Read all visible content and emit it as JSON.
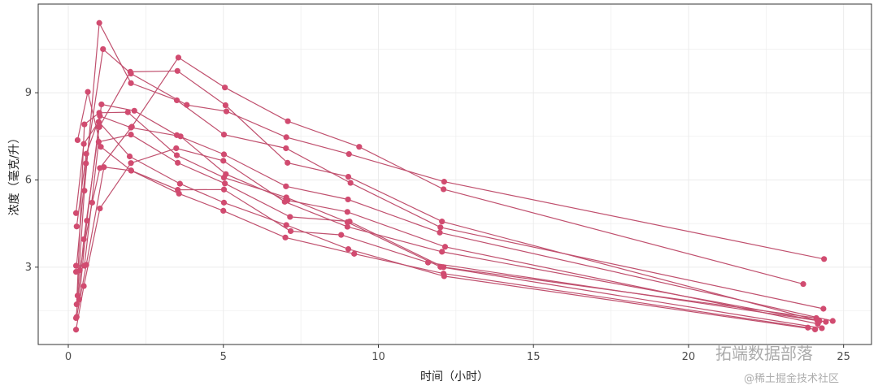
{
  "chart_data": {
    "type": "line",
    "title": "",
    "xlabel": "时间（小时）",
    "ylabel": "浓度（毫克/升）",
    "xlim": [
      -0.97,
      25.9
    ],
    "ylim": [
      0.34,
      12.05
    ],
    "xticks": [
      0,
      5,
      10,
      15,
      20,
      25
    ],
    "yticks": [
      3,
      6,
      9
    ],
    "grid": true,
    "markers": true,
    "color": "#d14b70",
    "line_color": "#c0506e",
    "series": [
      {
        "x": [
          0.25,
          0.57,
          1.12,
          2.02,
          3.82,
          5.1,
          7.03,
          9.05,
          12.12,
          24.37
        ],
        "y": [
          2.84,
          6.57,
          10.5,
          9.66,
          8.58,
          8.36,
          7.47,
          6.89,
          5.94,
          3.28
        ]
      },
      {
        "x": [
          0.27,
          0.52,
          1.0,
          1.92,
          3.5,
          5.02,
          7.03,
          9.0,
          12.0,
          24.3
        ],
        "y": [
          1.72,
          7.91,
          8.31,
          8.33,
          6.85,
          6.08,
          5.4,
          4.55,
          3.01,
          0.9
        ]
      },
      {
        "x": [
          0.27,
          0.58,
          1.02,
          2.02,
          3.62,
          5.08,
          7.07,
          9.0,
          12.15,
          24.17
        ],
        "y": [
          4.4,
          6.9,
          8.2,
          7.8,
          7.5,
          6.2,
          5.3,
          4.9,
          3.7,
          1.05
        ]
      },
      {
        "x": [
          0.35,
          0.6,
          1.07,
          2.13,
          3.5,
          5.02,
          7.02,
          9.02,
          11.98,
          24.65
        ],
        "y": [
          1.89,
          4.6,
          8.6,
          8.38,
          7.54,
          6.88,
          5.78,
          5.33,
          4.19,
          1.15
        ]
      },
      {
        "x": [
          0.3,
          0.52,
          1.0,
          2.02,
          3.5,
          5.02,
          7.02,
          9.1,
          12.0,
          24.35
        ],
        "y": [
          2.02,
          5.63,
          11.4,
          9.33,
          8.74,
          7.56,
          7.09,
          5.9,
          4.37,
          1.57
        ]
      },
      {
        "x": [
          0.27,
          0.58,
          1.15,
          2.03,
          3.57,
          5.0,
          7.0,
          9.22,
          12.1,
          23.85
        ],
        "y": [
          1.29,
          3.08,
          6.44,
          6.32,
          5.53,
          4.94,
          4.02,
          3.46,
          2.78,
          0.92
        ]
      },
      {
        "x": [
          0.25,
          0.5,
          1.02,
          2.02,
          3.48,
          5.0,
          6.98,
          9.0,
          12.05,
          24.22
        ],
        "y": [
          0.85,
          2.35,
          5.02,
          6.58,
          7.09,
          6.66,
          5.25,
          4.39,
          3.53,
          1.15
        ]
      },
      {
        "x": [
          0.25,
          0.52,
          0.98,
          2.02,
          3.53,
          5.05,
          7.15,
          9.07,
          12.1,
          24.12
        ],
        "y": [
          3.05,
          3.05,
          7.31,
          7.56,
          6.59,
          5.88,
          4.73,
          4.57,
          3.0,
          1.25
        ]
      },
      {
        "x": [
          0.3,
          0.63,
          1.05,
          2.02,
          3.53,
          5.02,
          7.17,
          8.8,
          11.6,
          24.43
        ],
        "y": [
          7.37,
          9.03,
          7.14,
          6.33,
          5.66,
          5.67,
          4.24,
          4.11,
          3.16,
          1.12
        ]
      },
      {
        "x": [
          0.37,
          0.77,
          1.02,
          2.05,
          3.55,
          5.05,
          7.08,
          9.38,
          12.1,
          23.7
        ],
        "y": [
          2.89,
          5.22,
          6.41,
          7.83,
          10.21,
          9.18,
          8.02,
          7.14,
          5.68,
          2.42
        ]
      },
      {
        "x": [
          0.25,
          0.5,
          0.98,
          1.98,
          3.6,
          5.02,
          7.03,
          9.03,
          12.12,
          24.08
        ],
        "y": [
          4.86,
          7.24,
          8.0,
          6.81,
          5.87,
          5.22,
          4.45,
          3.62,
          2.69,
          0.86
        ]
      },
      {
        "x": [
          0.25,
          0.5,
          1.0,
          2.0,
          3.52,
          5.07,
          7.07,
          9.03,
          12.05,
          24.15
        ],
        "y": [
          1.25,
          3.96,
          7.82,
          9.72,
          9.75,
          8.57,
          6.59,
          6.11,
          4.57,
          1.17
        ]
      }
    ]
  },
  "watermark": {
    "main": "拓端数据部落",
    "sub": "@稀土掘金技术社区"
  }
}
